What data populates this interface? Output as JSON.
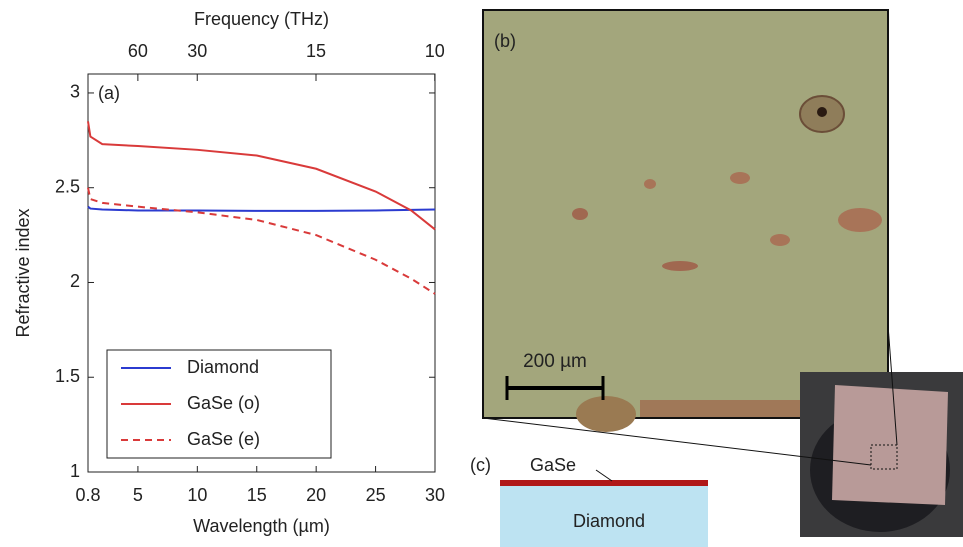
{
  "chart_data": {
    "type": "line",
    "panel_label": "(a)",
    "xlabel": "Wavelength (µm)",
    "ylabel": "Refractive index",
    "x2label": "Frequency (THz)",
    "x": [
      0.8,
      1,
      2,
      5,
      10,
      15,
      20,
      25,
      28,
      30
    ],
    "series": [
      {
        "name": "Diamond",
        "color": "#2b3bd0",
        "style": "solid",
        "values": [
          2.4,
          2.39,
          2.385,
          2.38,
          2.38,
          2.378,
          2.378,
          2.38,
          2.383,
          2.385
        ]
      },
      {
        "name": "GaSe (o)",
        "color": "#d93a3a",
        "style": "solid",
        "values": [
          2.85,
          2.77,
          2.73,
          2.72,
          2.7,
          2.67,
          2.6,
          2.48,
          2.38,
          2.28
        ]
      },
      {
        "name": "GaSe (e)",
        "color": "#d93a3a",
        "style": "dashed",
        "values": [
          2.5,
          2.44,
          2.42,
          2.4,
          2.37,
          2.33,
          2.25,
          2.12,
          2.02,
          1.94
        ]
      }
    ],
    "xlim": [
      0.8,
      30
    ],
    "xticks": [
      0.8,
      5,
      10,
      15,
      20,
      25,
      30
    ],
    "x2ticks": [
      60,
      30,
      15,
      10
    ],
    "ylim": [
      1,
      3.1
    ],
    "yticks": [
      1,
      1.5,
      2,
      2.5,
      3
    ],
    "legend": "lower left"
  },
  "micrograph": {
    "label": "(b)",
    "scale_bar": "200 µm"
  },
  "schematic": {
    "label": "(c)",
    "layer": "GaSe",
    "substrate": "Diamond"
  }
}
